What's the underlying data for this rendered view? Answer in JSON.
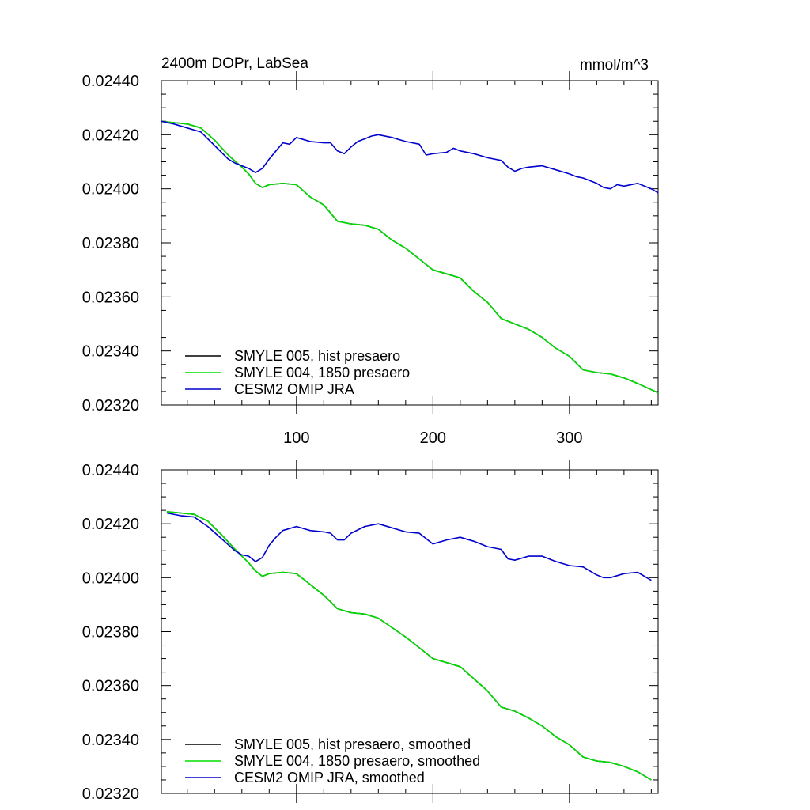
{
  "figure": {
    "title_left": "2400m DOPr, LabSea",
    "title_right": "mmol/m^3"
  },
  "colors": {
    "smyle005": "#000000",
    "smyle004": "#00dd00",
    "omip": "#0000cc"
  },
  "chart_data": [
    {
      "type": "line",
      "title": "2400m DOPr, LabSea",
      "units": "mmol/m^3",
      "xlim": [
        1,
        365
      ],
      "ylim": [
        0.0232,
        0.0244
      ],
      "yticks": [
        "0.02440",
        "0.02420",
        "0.02400",
        "0.02380",
        "0.02360",
        "0.02340",
        "0.02320"
      ],
      "xticks": [
        "100",
        "200",
        "300"
      ],
      "legend_position": "bottom-left",
      "series": [
        {
          "name": "SMYLE 005, hist presaero",
          "color": "#000000",
          "x": [
            1,
            10,
            20,
            30,
            40,
            50,
            60,
            65,
            70,
            75,
            80,
            90,
            100,
            110,
            120,
            130,
            140,
            150,
            160,
            170,
            180,
            190,
            200,
            210,
            220,
            230,
            240,
            250,
            260,
            270,
            280,
            290,
            300,
            310,
            320,
            330,
            340,
            350,
            365
          ],
          "y": [
            0.02425,
            0.024245,
            0.02424,
            0.024225,
            0.02418,
            0.024125,
            0.02408,
            0.024055,
            0.02402,
            0.024005,
            0.024015,
            0.02402,
            0.024015,
            0.02397,
            0.02394,
            0.02388,
            0.02387,
            0.023865,
            0.02385,
            0.02381,
            0.02378,
            0.02374,
            0.0237,
            0.023685,
            0.02367,
            0.02362,
            0.02358,
            0.02352,
            0.0235,
            0.02348,
            0.02345,
            0.02341,
            0.02338,
            0.02333,
            0.02332,
            0.023315,
            0.0233,
            0.02328,
            0.023245
          ]
        },
        {
          "name": "SMYLE 004, 1850 presaero",
          "color": "#00dd00",
          "x": [
            1,
            10,
            20,
            30,
            40,
            50,
            60,
            65,
            70,
            75,
            80,
            90,
            100,
            110,
            120,
            130,
            140,
            150,
            160,
            170,
            180,
            190,
            200,
            210,
            220,
            230,
            240,
            250,
            260,
            270,
            280,
            290,
            300,
            310,
            320,
            330,
            340,
            350,
            365
          ],
          "y": [
            0.02425,
            0.024245,
            0.02424,
            0.024225,
            0.02418,
            0.024125,
            0.02408,
            0.024055,
            0.02402,
            0.024005,
            0.024015,
            0.02402,
            0.024015,
            0.02397,
            0.02394,
            0.02388,
            0.02387,
            0.023865,
            0.02385,
            0.02381,
            0.02378,
            0.02374,
            0.0237,
            0.023685,
            0.02367,
            0.02362,
            0.02358,
            0.02352,
            0.0235,
            0.02348,
            0.02345,
            0.02341,
            0.02338,
            0.02333,
            0.02332,
            0.023315,
            0.0233,
            0.02328,
            0.023245
          ]
        },
        {
          "name": "CESM2 OMIP JRA",
          "color": "#0000cc",
          "x": [
            1,
            10,
            20,
            30,
            40,
            50,
            55,
            60,
            65,
            70,
            75,
            80,
            85,
            90,
            95,
            100,
            110,
            120,
            125,
            130,
            135,
            140,
            145,
            150,
            155,
            160,
            170,
            180,
            190,
            195,
            200,
            210,
            215,
            220,
            230,
            240,
            250,
            255,
            260,
            265,
            270,
            280,
            290,
            300,
            305,
            310,
            320,
            325,
            330,
            335,
            340,
            350,
            360,
            365
          ],
          "y": [
            0.02425,
            0.02424,
            0.024225,
            0.02421,
            0.02416,
            0.02411,
            0.024095,
            0.024085,
            0.024075,
            0.02406,
            0.024075,
            0.02411,
            0.02414,
            0.02417,
            0.024165,
            0.02419,
            0.024175,
            0.02417,
            0.02417,
            0.02414,
            0.02413,
            0.024155,
            0.024175,
            0.024185,
            0.024195,
            0.0242,
            0.02419,
            0.024175,
            0.024165,
            0.024125,
            0.02413,
            0.024135,
            0.02415,
            0.02414,
            0.02413,
            0.024115,
            0.024105,
            0.02408,
            0.024065,
            0.024075,
            0.02408,
            0.024085,
            0.02407,
            0.024055,
            0.024045,
            0.02404,
            0.02402,
            0.024005,
            0.024,
            0.024015,
            0.02401,
            0.02402,
            0.024,
            0.023985
          ]
        }
      ]
    },
    {
      "type": "line",
      "xlim": [
        1,
        365
      ],
      "ylim": [
        0.0232,
        0.0244
      ],
      "yticks": [
        "0.02440",
        "0.02420",
        "0.02400",
        "0.02380",
        "0.02360",
        "0.02340",
        "0.02320"
      ],
      "legend_position": "bottom-left",
      "series": [
        {
          "name": "SMYLE 005, hist presaero, smoothed",
          "color": "#000000",
          "x": [
            5,
            15,
            25,
            35,
            45,
            55,
            60,
            65,
            70,
            75,
            80,
            90,
            100,
            110,
            120,
            130,
            140,
            150,
            160,
            170,
            180,
            190,
            200,
            210,
            220,
            230,
            240,
            250,
            260,
            270,
            280,
            290,
            300,
            310,
            320,
            330,
            340,
            350,
            360
          ],
          "y": [
            0.024245,
            0.02424,
            0.024235,
            0.02421,
            0.02416,
            0.024105,
            0.02408,
            0.024055,
            0.024025,
            0.024005,
            0.024015,
            0.02402,
            0.024015,
            0.023975,
            0.023935,
            0.023885,
            0.02387,
            0.023865,
            0.02385,
            0.023815,
            0.02378,
            0.02374,
            0.0237,
            0.023685,
            0.02367,
            0.023625,
            0.02358,
            0.02352,
            0.023505,
            0.02348,
            0.02345,
            0.02341,
            0.02338,
            0.023335,
            0.02332,
            0.023315,
            0.0233,
            0.02328,
            0.02325
          ]
        },
        {
          "name": "SMYLE 004, 1850 presaero, smoothed",
          "color": "#00dd00",
          "x": [
            5,
            15,
            25,
            35,
            45,
            55,
            60,
            65,
            70,
            75,
            80,
            90,
            100,
            110,
            120,
            130,
            140,
            150,
            160,
            170,
            180,
            190,
            200,
            210,
            220,
            230,
            240,
            250,
            260,
            270,
            280,
            290,
            300,
            310,
            320,
            330,
            340,
            350,
            360
          ],
          "y": [
            0.024245,
            0.02424,
            0.024235,
            0.02421,
            0.02416,
            0.024105,
            0.02408,
            0.024055,
            0.024025,
            0.024005,
            0.024015,
            0.02402,
            0.024015,
            0.023975,
            0.023935,
            0.023885,
            0.02387,
            0.023865,
            0.02385,
            0.023815,
            0.02378,
            0.02374,
            0.0237,
            0.023685,
            0.02367,
            0.023625,
            0.02358,
            0.02352,
            0.023505,
            0.02348,
            0.02345,
            0.02341,
            0.02338,
            0.023335,
            0.02332,
            0.023315,
            0.0233,
            0.02328,
            0.02325
          ]
        },
        {
          "name": "CESM2 OMIP JRA, smoothed",
          "color": "#0000cc",
          "x": [
            5,
            15,
            25,
            35,
            45,
            55,
            60,
            65,
            70,
            75,
            80,
            85,
            90,
            100,
            110,
            120,
            125,
            130,
            135,
            140,
            150,
            160,
            170,
            180,
            190,
            200,
            210,
            220,
            230,
            240,
            250,
            255,
            260,
            270,
            280,
            290,
            300,
            310,
            320,
            325,
            330,
            340,
            350,
            360
          ],
          "y": [
            0.02424,
            0.02423,
            0.024225,
            0.02419,
            0.024145,
            0.0241,
            0.024085,
            0.02408,
            0.02406,
            0.024075,
            0.02412,
            0.02415,
            0.024175,
            0.02419,
            0.024175,
            0.02417,
            0.024165,
            0.02414,
            0.02414,
            0.024165,
            0.02419,
            0.0242,
            0.024185,
            0.02417,
            0.024165,
            0.024125,
            0.02414,
            0.02415,
            0.024135,
            0.024115,
            0.024105,
            0.02407,
            0.024065,
            0.02408,
            0.02408,
            0.02406,
            0.024045,
            0.02404,
            0.02401,
            0.024,
            0.024,
            0.024015,
            0.02402,
            0.02399
          ]
        }
      ]
    }
  ]
}
